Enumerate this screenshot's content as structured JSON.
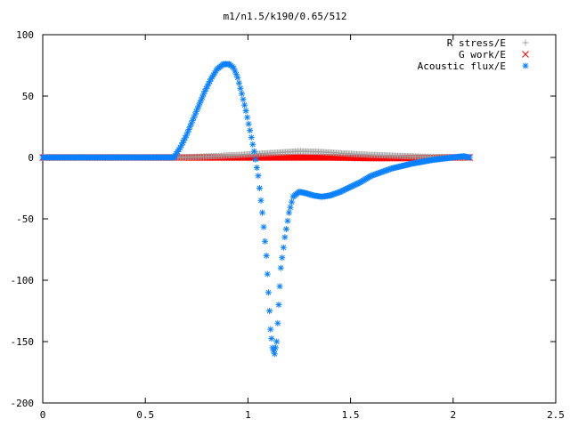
{
  "chart_data": {
    "type": "scatter",
    "title": "m1/n1.5/k190/0.65/512",
    "xlabel": "",
    "ylabel": "",
    "xlim": [
      0,
      2.5
    ],
    "ylim": [
      -200,
      100
    ],
    "x_ticks": [
      "0",
      "0.5",
      "1",
      "1.5",
      "2",
      "2.5"
    ],
    "x_tick_values": [
      0,
      0.5,
      1,
      1.5,
      2,
      2.5
    ],
    "y_ticks": [
      "100",
      "50",
      "0",
      "-50",
      "-100",
      "-150",
      "-200"
    ],
    "y_tick_values": [
      100,
      50,
      0,
      -50,
      -100,
      -150,
      -200
    ],
    "grid": false,
    "legend_position": "top-right",
    "series": [
      {
        "name": "R stress/E",
        "marker": "plus",
        "color": "#a0a0a0",
        "points": [
          [
            0.0,
            0
          ],
          [
            0.3,
            0
          ],
          [
            0.6,
            0
          ],
          [
            0.65,
            0
          ],
          [
            0.75,
            0.5
          ],
          [
            0.85,
            1.2
          ],
          [
            0.95,
            2
          ],
          [
            1.05,
            3
          ],
          [
            1.15,
            4
          ],
          [
            1.25,
            5
          ],
          [
            1.35,
            4.5
          ],
          [
            1.45,
            3.5
          ],
          [
            1.55,
            2.5
          ],
          [
            1.65,
            1.8
          ],
          [
            1.75,
            1.2
          ],
          [
            1.85,
            0.6
          ],
          [
            1.95,
            0.3
          ],
          [
            2.05,
            0.1
          ],
          [
            2.08,
            0
          ]
        ]
      },
      {
        "name": "G work/E",
        "marker": "cross",
        "color": "#ff0000",
        "points": [
          [
            0.0,
            0
          ],
          [
            0.3,
            0
          ],
          [
            0.6,
            0
          ],
          [
            0.65,
            0
          ],
          [
            0.8,
            0
          ],
          [
            1.0,
            0
          ],
          [
            1.2,
            0
          ],
          [
            1.4,
            0
          ],
          [
            1.6,
            -0.5
          ],
          [
            1.8,
            -0.5
          ],
          [
            2.0,
            0
          ],
          [
            2.08,
            0
          ]
        ]
      },
      {
        "name": "Acoustic flux/E",
        "marker": "star",
        "color": "#0a80ff",
        "points": [
          [
            0.0,
            0
          ],
          [
            0.1,
            0
          ],
          [
            0.2,
            0
          ],
          [
            0.3,
            0
          ],
          [
            0.4,
            0
          ],
          [
            0.5,
            0
          ],
          [
            0.6,
            0
          ],
          [
            0.64,
            0
          ],
          [
            0.65,
            3
          ],
          [
            0.67,
            8
          ],
          [
            0.7,
            18
          ],
          [
            0.73,
            30
          ],
          [
            0.76,
            42
          ],
          [
            0.79,
            54
          ],
          [
            0.82,
            64
          ],
          [
            0.85,
            72
          ],
          [
            0.88,
            76
          ],
          [
            0.91,
            76
          ],
          [
            0.93,
            73
          ],
          [
            0.95,
            65
          ],
          [
            0.97,
            52
          ],
          [
            0.99,
            38
          ],
          [
            1.01,
            22
          ],
          [
            1.03,
            5
          ],
          [
            1.05,
            -15
          ],
          [
            1.07,
            -45
          ],
          [
            1.09,
            -80
          ],
          [
            1.1,
            -110
          ],
          [
            1.11,
            -140
          ],
          [
            1.12,
            -155
          ],
          [
            1.13,
            -160
          ],
          [
            1.14,
            -150
          ],
          [
            1.15,
            -120
          ],
          [
            1.16,
            -90
          ],
          [
            1.18,
            -65
          ],
          [
            1.2,
            -45
          ],
          [
            1.22,
            -32
          ],
          [
            1.25,
            -28
          ],
          [
            1.28,
            -29
          ],
          [
            1.32,
            -31
          ],
          [
            1.36,
            -32
          ],
          [
            1.4,
            -31
          ],
          [
            1.45,
            -28
          ],
          [
            1.5,
            -24
          ],
          [
            1.55,
            -20
          ],
          [
            1.6,
            -15
          ],
          [
            1.7,
            -9
          ],
          [
            1.8,
            -5
          ],
          [
            1.9,
            -2
          ],
          [
            2.0,
            0
          ],
          [
            2.05,
            1
          ],
          [
            2.08,
            0
          ]
        ]
      }
    ]
  }
}
